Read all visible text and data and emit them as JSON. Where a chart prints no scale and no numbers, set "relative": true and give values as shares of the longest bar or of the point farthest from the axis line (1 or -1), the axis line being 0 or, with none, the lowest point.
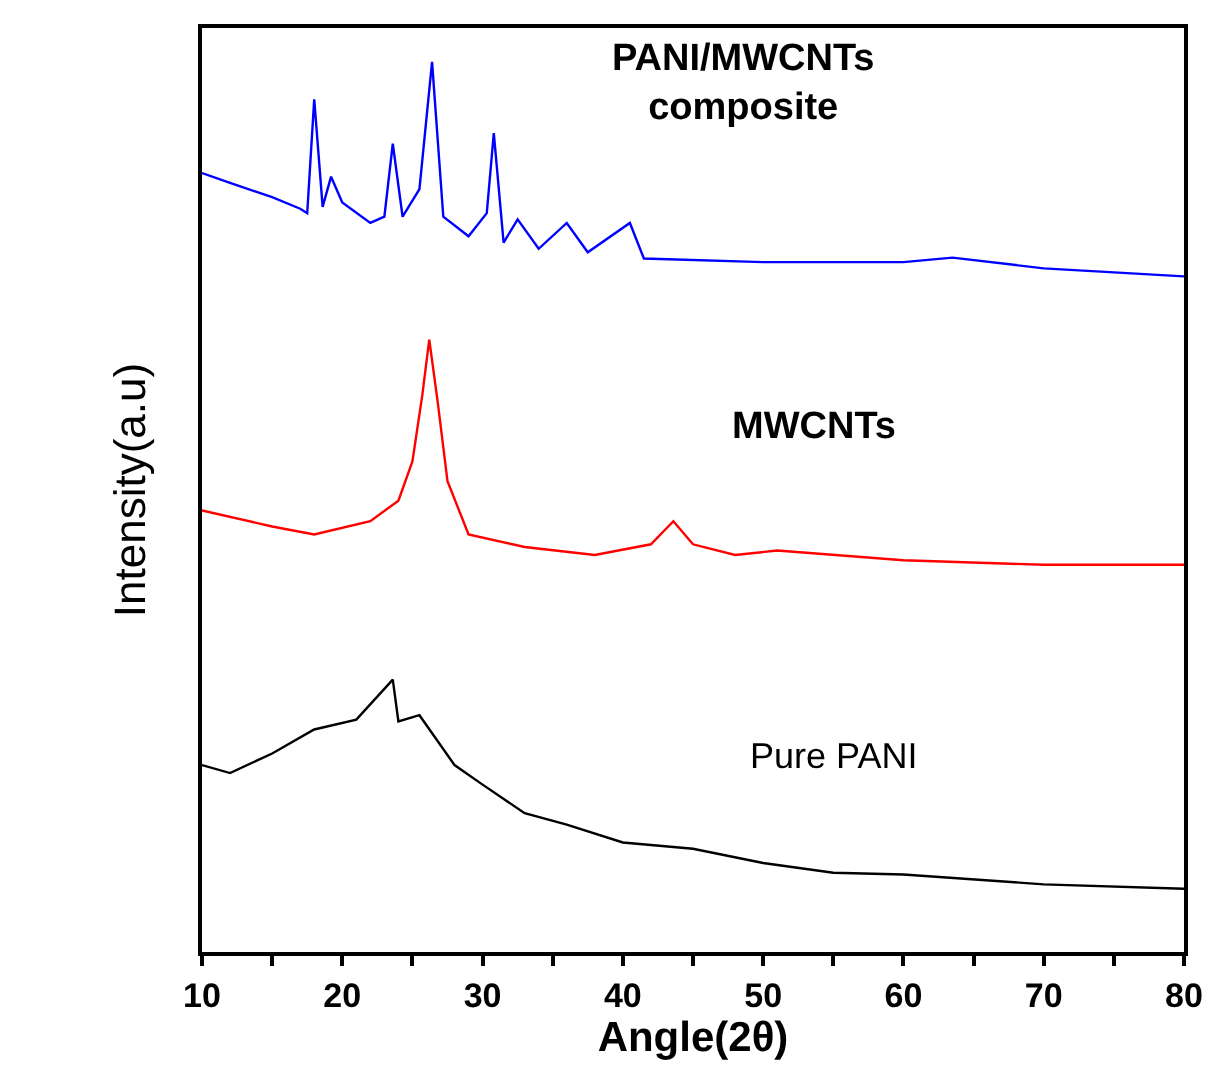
{
  "chart_data": {
    "type": "line",
    "relative": true,
    "xlabel": "Angle(2θ)",
    "ylabel": "Intensity(a.u)",
    "xlim": [
      10,
      80
    ],
    "xticks": [
      10,
      {
        "value": 15,
        "label": null
      },
      20,
      {
        "value": 25,
        "label": null
      },
      30,
      {
        "value": 35,
        "label": null
      },
      40,
      {
        "value": 45,
        "label": null
      },
      50,
      {
        "value": 55,
        "label": null
      },
      60,
      {
        "value": 65,
        "label": null
      },
      70,
      {
        "value": 75,
        "label": null
      },
      80
    ],
    "legend": false,
    "marker": "none",
    "line_style": "solid",
    "series": [
      {
        "name": "PANI/MWCNTs\ncomposite",
        "color": "#0000ff",
        "x": [
          10,
          12,
          15,
          17,
          17.5,
          18,
          18.6,
          19.2,
          20,
          22,
          23,
          23.6,
          24.3,
          25.5,
          26.4,
          27.2,
          29,
          30.3,
          30.8,
          31.5,
          32.5,
          34,
          36,
          37.5,
          40.5,
          41.5,
          50,
          60,
          63.5,
          70,
          80
        ],
        "values": [
          0.875,
          0.864,
          0.848,
          0.835,
          0.83,
          0.958,
          0.837,
          0.871,
          0.842,
          0.819,
          0.826,
          0.908,
          0.826,
          0.857,
          1.0,
          0.826,
          0.804,
          0.83,
          0.92,
          0.797,
          0.823,
          0.79,
          0.819,
          0.786,
          0.819,
          0.779,
          0.775,
          0.775,
          0.78,
          0.768,
          0.759
        ]
      },
      {
        "name": "MWCNTs",
        "color": "#ff0000",
        "x": [
          10,
          15,
          18,
          22,
          24,
          25,
          25.7,
          26.2,
          26.8,
          27.5,
          29,
          33,
          38,
          42,
          43.6,
          45,
          48,
          51,
          60,
          70,
          80
        ],
        "values": [
          0.496,
          0.478,
          0.469,
          0.484,
          0.507,
          0.551,
          0.625,
          0.688,
          0.618,
          0.529,
          0.469,
          0.455,
          0.446,
          0.458,
          0.484,
          0.458,
          0.446,
          0.451,
          0.44,
          0.435,
          0.435
        ]
      },
      {
        "name": "Pure PANI",
        "color": "#000000",
        "x": [
          10,
          12,
          15,
          18,
          21,
          23.6,
          24,
          25.5,
          28,
          30,
          33,
          36,
          40,
          45,
          50,
          55,
          60,
          70,
          80
        ],
        "values": [
          0.21,
          0.201,
          0.223,
          0.25,
          0.261,
          0.306,
          0.259,
          0.266,
          0.21,
          0.188,
          0.156,
          0.143,
          0.123,
          0.116,
          0.1,
          0.089,
          0.087,
          0.076,
          0.071
        ]
      }
    ]
  }
}
